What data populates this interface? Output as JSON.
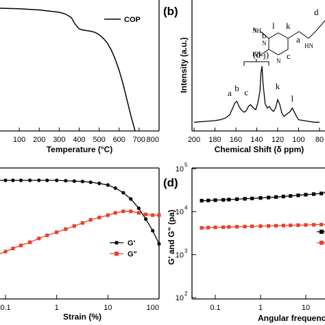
{
  "chart_data": [
    {
      "id": "a",
      "type": "line",
      "xlabel": "Temperature (°C)",
      "ylabel": "",
      "xlim": [
        0,
        800
      ],
      "x_ticks": [
        "100",
        "200",
        "300",
        "400",
        "500",
        "600",
        "700",
        "800"
      ],
      "legend": "top-right",
      "series": [
        {
          "name": "COP",
          "x": [
            0,
            100,
            200,
            300,
            330,
            360,
            380,
            400,
            420,
            440,
            460,
            480,
            500,
            520,
            540,
            560,
            580,
            600,
            620,
            640,
            660,
            680
          ],
          "y": [
            100,
            99.5,
            98.5,
            96.5,
            95,
            92,
            86,
            82,
            81,
            80.5,
            80,
            79,
            77,
            74,
            70,
            64,
            56,
            46,
            34,
            20,
            6,
            -8
          ]
        }
      ]
    },
    {
      "id": "b",
      "type": "line",
      "xlabel": "Chemical Shift (δ ppm)",
      "ylabel": "Intensity (a.u.)",
      "xlim": [
        200,
        0
      ],
      "x_ticks": [
        "200",
        "180",
        "160",
        "140",
        "120",
        "100",
        "80"
      ],
      "series": [
        {
          "name": "",
          "x": [
            200,
            190,
            180,
            175,
            170,
            166,
            163,
            161,
            159,
            157,
            155,
            152,
            150,
            148,
            146,
            143,
            141,
            139,
            137,
            136,
            135,
            134,
            132,
            130,
            128,
            126,
            124,
            122,
            120,
            118,
            116,
            114,
            112,
            110,
            108,
            106,
            104,
            102,
            100,
            95,
            90,
            85,
            80
          ],
          "y": [
            3,
            4,
            5,
            6,
            8,
            12,
            20,
            26,
            28,
            22,
            18,
            15,
            17,
            22,
            24,
            20,
            18,
            26,
            40,
            62,
            70,
            50,
            25,
            20,
            22,
            18,
            16,
            20,
            30,
            24,
            14,
            10,
            12,
            14,
            16,
            20,
            15,
            10,
            6,
            5,
            4,
            3,
            3
          ]
        }
      ],
      "peak_labels": [
        {
          "label": "a",
          "x": 166
        },
        {
          "label": "b",
          "x": 159
        },
        {
          "label": "c",
          "x": 150
        },
        {
          "label": "(d-j)",
          "x": 136
        },
        {
          "label": "k",
          "x": 120
        },
        {
          "label": "l",
          "x": 106
        }
      ],
      "structure_labels": [
        "NH",
        "HN",
        "N",
        "N",
        "HN",
        "l",
        "k",
        "b",
        "c",
        "a",
        "d"
      ]
    },
    {
      "id": "c",
      "type": "line",
      "xlabel": "Strain (%)",
      "xscale": "log",
      "xlim": [
        0.05,
        100
      ],
      "x_ticks": [
        "0.1",
        "1",
        "10",
        "100"
      ],
      "legend": "right",
      "series": [
        {
          "name": "G'",
          "x": [
            0.05,
            0.07,
            0.1,
            0.14,
            0.2,
            0.3,
            0.45,
            0.65,
            1,
            1.5,
            2.2,
            3.2,
            4.6,
            6.8,
            10,
            14,
            20,
            28,
            40,
            55,
            75,
            100
          ],
          "y": [
            1.0,
            1.0,
            1.0,
            1.0,
            1.0,
            1.0,
            1.0,
            1.0,
            1.0,
            0.995,
            0.99,
            0.985,
            0.975,
            0.96,
            0.94,
            0.9,
            0.84,
            0.76,
            0.64,
            0.5,
            0.35,
            0.18
          ],
          "color": "#000000"
        },
        {
          "name": "G\"",
          "x": [
            0.05,
            0.07,
            0.1,
            0.14,
            0.2,
            0.3,
            0.45,
            0.65,
            1,
            1.5,
            2.2,
            3.2,
            4.6,
            6.8,
            10,
            14,
            20,
            28,
            40,
            55,
            75,
            100
          ],
          "y": [
            0.0,
            0.04,
            0.08,
            0.12,
            0.16,
            0.2,
            0.25,
            0.29,
            0.33,
            0.37,
            0.41,
            0.45,
            0.49,
            0.52,
            0.55,
            0.58,
            0.6,
            0.6,
            0.58,
            0.56,
            0.55,
            0.55
          ],
          "color": "#e8412b"
        }
      ]
    },
    {
      "id": "d",
      "type": "line",
      "xlabel": "Angular frequency (rad",
      "ylabel": "G' and G\" (pa)",
      "xscale": "log",
      "yscale": "log",
      "xlim": [
        0.05,
        60
      ],
      "ylim": [
        100,
        100000
      ],
      "x_ticks": [
        "0.1",
        "1",
        "10"
      ],
      "y_ticks": [
        "10",
        "10",
        "10",
        "10"
      ],
      "y_tick_exps": [
        "2",
        "3",
        "4",
        "5"
      ],
      "series": [
        {
          "name": "",
          "x": [
            0.05,
            0.07,
            0.1,
            0.15,
            0.2,
            0.3,
            0.45,
            0.65,
            1,
            1.5,
            2.2,
            3.2,
            4.6,
            6.8,
            10,
            15,
            22,
            32,
            45,
            60
          ],
          "y": [
            18000,
            18200,
            18500,
            18800,
            19100,
            19500,
            19900,
            20300,
            20800,
            21300,
            21900,
            22500,
            23200,
            24000,
            24800,
            25600,
            26500,
            27400,
            28400,
            29400
          ],
          "color": "#000000"
        },
        {
          "name": "",
          "x": [
            0.05,
            0.07,
            0.1,
            0.15,
            0.2,
            0.3,
            0.45,
            0.65,
            1,
            1.5,
            2.2,
            3.2,
            4.6,
            6.8,
            10,
            15,
            22,
            32,
            45,
            60
          ],
          "y": [
            4200,
            4250,
            4300,
            4350,
            4400,
            4450,
            4500,
            4550,
            4600,
            4650,
            4700,
            4750,
            4800,
            4850,
            4900,
            4950,
            5000,
            5050,
            5100,
            5150
          ],
          "color": "#e8412b"
        }
      ]
    }
  ],
  "panels": {
    "b": "(b)",
    "d": "(d)"
  }
}
